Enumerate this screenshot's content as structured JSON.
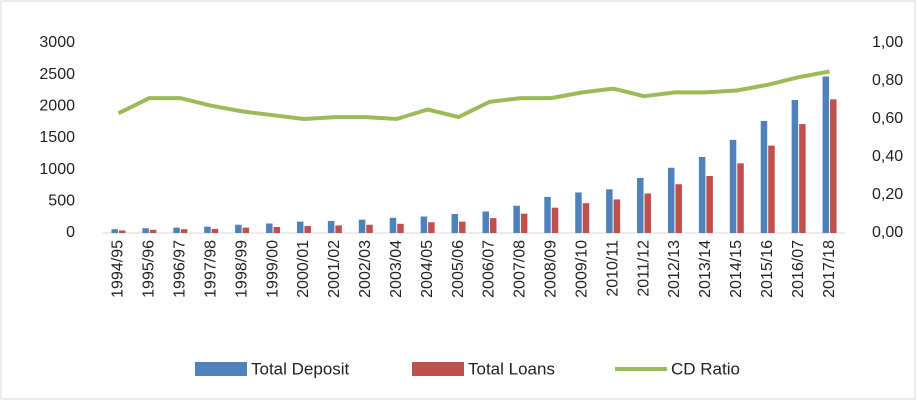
{
  "chart_data": {
    "type": "bar_line",
    "categories": [
      "1994/95",
      "1995/96",
      "1996/97",
      "1997/98",
      "1998/99",
      "1999/00",
      "2000/01",
      "2001/02",
      "2002/03",
      "2003/04",
      "2004/05",
      "2005/06",
      "2006/07",
      "2007/08",
      "2008/09",
      "2009/10",
      "2010/11",
      "2011/12",
      "2012/13",
      "2013/14",
      "2014/15",
      "2015/16",
      "2016/07",
      "2017/18"
    ],
    "series": [
      {
        "name": "Total Deposit",
        "color": "#4f81bd",
        "type": "bar",
        "values": [
          60,
          75,
          85,
          100,
          130,
          150,
          180,
          190,
          210,
          240,
          260,
          300,
          340,
          430,
          570,
          640,
          690,
          870,
          1030,
          1200,
          1470,
          1770,
          2100,
          2470
        ]
      },
      {
        "name": "Total Loans",
        "color": "#c0504d",
        "type": "bar",
        "values": [
          40,
          50,
          60,
          65,
          85,
          95,
          110,
          120,
          130,
          145,
          170,
          180,
          235,
          305,
          400,
          470,
          530,
          625,
          770,
          900,
          1100,
          1380,
          1720,
          2110
        ]
      },
      {
        "name": "CD Ratio",
        "color": "#9bbb59",
        "type": "line",
        "axis": "y2",
        "values": [
          0.63,
          0.71,
          0.71,
          0.67,
          0.64,
          0.62,
          0.6,
          0.61,
          0.61,
          0.6,
          0.65,
          0.61,
          0.69,
          0.71,
          0.71,
          0.74,
          0.76,
          0.72,
          0.74,
          0.74,
          0.75,
          0.78,
          0.82,
          0.85
        ]
      }
    ],
    "ylim": [
      0,
      3000
    ],
    "yticks": [
      0,
      500,
      1000,
      1500,
      2000,
      2500,
      3000
    ],
    "y2lim": [
      0,
      1
    ],
    "y2ticks": [
      {
        "value": 0,
        "label": "0,00"
      },
      {
        "value": 0.2,
        "label": "0,20"
      },
      {
        "value": 0.4,
        "label": "0,40"
      },
      {
        "value": 0.6,
        "label": "0,60"
      },
      {
        "value": 0.8,
        "label": "0,80"
      },
      {
        "value": 1,
        "label": "1,00"
      }
    ]
  }
}
